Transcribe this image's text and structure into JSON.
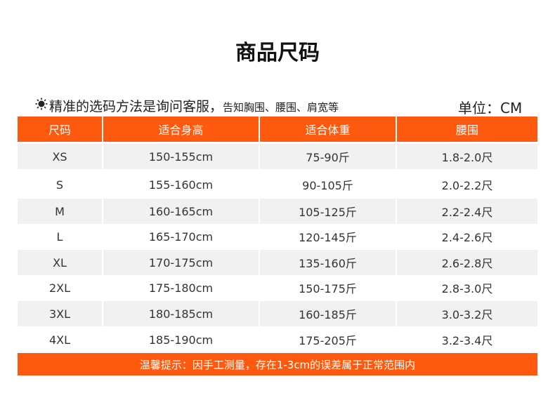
{
  "header": {
    "title": "商品尺码",
    "note_main": "精准的选码方法是询问客服，",
    "note_detail": "告知胸围、腰围、肩宽等",
    "unit": "单位：CM"
  },
  "table": {
    "columns": [
      "尺码",
      "适合身高",
      "适合体重",
      "腰围"
    ],
    "rows": [
      [
        "XS",
        "150-155cm",
        "75-90斤",
        "1.8-2.0尺"
      ],
      [
        "S",
        "155-160cm",
        "90-105斤",
        "2.0-2.2尺"
      ],
      [
        "M",
        "160-165cm",
        "105-125斤",
        "2.2-2.4尺"
      ],
      [
        "L",
        "165-170cm",
        "120-145斤",
        "2.4-2.6尺"
      ],
      [
        "XL",
        "170-175cm",
        "135-160斤",
        "2.6-2.8尺"
      ],
      [
        "2XL",
        "175-180cm",
        "150-175斤",
        "2.8-3.0尺"
      ],
      [
        "3XL",
        "180-185cm",
        "160-185斤",
        "3.0-3.2尺"
      ],
      [
        "4XL",
        "185-190cm",
        "175-205斤",
        "3.2-3.4尺"
      ]
    ]
  },
  "footer": {
    "tip": "温馨提示：因手工测量，存在1-3cm的误差属于正常范围内"
  }
}
